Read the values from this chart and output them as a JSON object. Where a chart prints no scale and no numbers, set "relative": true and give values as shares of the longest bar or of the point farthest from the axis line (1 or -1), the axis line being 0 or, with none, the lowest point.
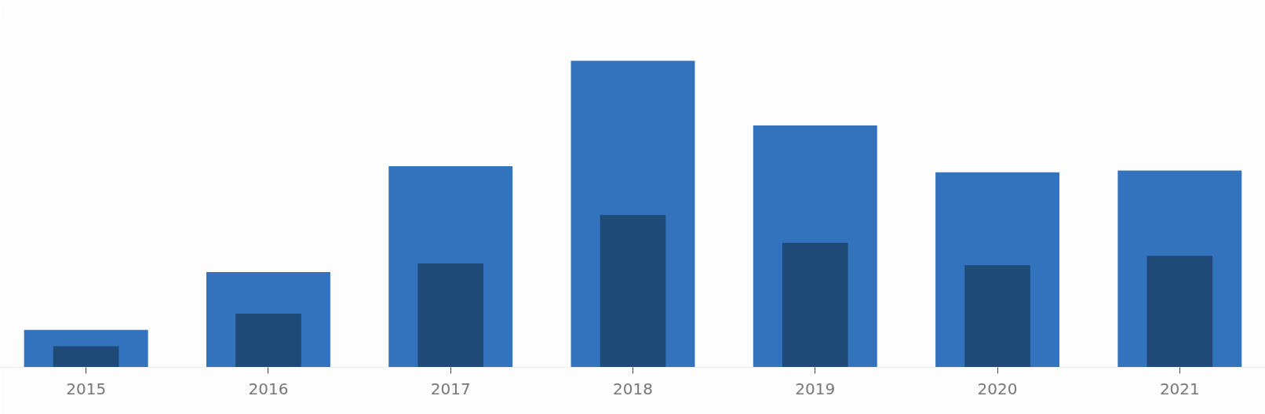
{
  "chart_data": {
    "type": "bar",
    "relative": true,
    "categories": [
      "2015",
      "2016",
      "2017",
      "2018",
      "2019",
      "2020",
      "2021"
    ],
    "series": [
      {
        "color": "#3373be",
        "values": [
          0.122,
          0.311,
          0.656,
          1,
          0.789,
          0.636,
          0.642
        ]
      },
      {
        "color": "#1f4a77",
        "values": [
          0.069,
          0.175,
          0.339,
          0.497,
          0.406,
          0.333,
          0.364
        ]
      }
    ]
  }
}
